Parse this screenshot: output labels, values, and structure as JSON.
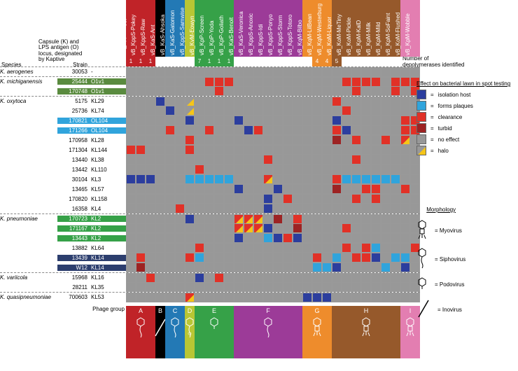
{
  "colors": {
    "no_effect": "#989898",
    "isolation": "#2c3e9e",
    "plaques": "#30a4dc",
    "clearance": "#e13127",
    "turbid": "#9d2323",
    "halo": "#f5c518",
    "grp_A": "#c02328",
    "grp_B": "#000000",
    "grp_C": "#2379b5",
    "grp_D": "#b9c634",
    "grp_E": "#36a148",
    "grp_F": "#9c3b98",
    "grp_G": "#ee8c2c",
    "grp_H": "#96592b",
    "grp_I": "#e37eb1",
    "hl_green": "#5a8b3f",
    "hl_blue": "#30a4dc",
    "hl_green2": "#36a148",
    "hl_navy": "#2c3e6e"
  },
  "meta_labels": {
    "species": "Species",
    "strain": "Strain",
    "locus": "Capsule (K) and LPS antigen (O) locus, designated by Kaptive",
    "depoly": "Number of depolymerases identified",
    "phage_group": "Phage group"
  },
  "columns": [
    {
      "label": "vB_KppS-Eggy",
      "grp": "A",
      "num": "1"
    },
    {
      "label": "vB_KppS-Pokey",
      "grp": "A",
      "num": "1"
    },
    {
      "label": "vB_KppS-Raw",
      "grp": "A",
      "num": "1"
    },
    {
      "label": "vB_KaS-Ant",
      "grp": "B",
      "num": ""
    },
    {
      "label": "vB_KaS-Ahsoka",
      "grp": "C",
      "num": ""
    },
    {
      "label": "vB_KaS-Gatomon",
      "grp": "C",
      "num": ""
    },
    {
      "label": "vB_KppS-Samwise",
      "grp": "D",
      "num": ""
    },
    {
      "label": "vB_KvM-Eowyn",
      "grp": "E",
      "num": "7"
    },
    {
      "label": "vB_KpP-Screen",
      "grp": "E",
      "num": "1"
    },
    {
      "label": "vB_KpP-Yoda",
      "grp": "E",
      "num": "1"
    },
    {
      "label": "vB_KpP-Goliath",
      "grp": "E",
      "num": "1"
    },
    {
      "label": "vB_KaS-Benoit",
      "grp": "F",
      "num": ""
    },
    {
      "label": "vB_KaS-Veronica",
      "grp": "F",
      "num": ""
    },
    {
      "label": "vB_KppS-Anoxic",
      "grp": "F",
      "num": ""
    },
    {
      "label": "vB_KppS-Idi",
      "grp": "F",
      "num": ""
    },
    {
      "label": "vB_KppS-Ponyo",
      "grp": "F",
      "num": ""
    },
    {
      "label": "vB_KppS-Storm",
      "grp": "F",
      "num": ""
    },
    {
      "label": "vB_KppS-Totoro",
      "grp": "F",
      "num": ""
    },
    {
      "label": "vB_KqM-Bilbo",
      "grp": "G",
      "num": ""
    },
    {
      "label": "vB_KqM-LilBean",
      "grp": "G",
      "num": "4"
    },
    {
      "label": "vB_KqM-Westerburg",
      "grp": "G",
      "num": "4"
    },
    {
      "label": "vB_KoM-Liquor",
      "grp": "H",
      "num": "5"
    },
    {
      "label": "vB_KoM-MeTiny",
      "grp": "H",
      "num": ""
    },
    {
      "label": "vB_KoM-Pickle",
      "grp": "H",
      "num": ""
    },
    {
      "label": "vB_KpM-KalD",
      "grp": "H",
      "num": ""
    },
    {
      "label": "vB_KpM-Milk",
      "grp": "H",
      "num": ""
    },
    {
      "label": "vB_KpM-Mild",
      "grp": "H",
      "num": ""
    },
    {
      "label": "vB_KpM-SoFaint",
      "grp": "H",
      "num": ""
    },
    {
      "label": "vB_KoM-Flushed",
      "grp": "I",
      "num": ""
    },
    {
      "label": "vB_KpM-Wobble",
      "grp": "I",
      "num": ""
    }
  ],
  "rows": [
    {
      "species": "K. aerogenes",
      "strain": "30053",
      "locus": "-",
      "hl": "",
      "sp_first": true,
      "cells": "nnnnnnnnnnnnnnnnnnnnnnnnnnnnnn"
    },
    {
      "species": "K. michiganensis",
      "strain": "25444",
      "locus": "O1v1",
      "hl": "hl_green",
      "sp_first": true,
      "cells": "nnnnnnnncccnnnnnnnnnnnccccnccc"
    },
    {
      "species": "",
      "strain": "170748",
      "locus": "O1v1",
      "hl": "hl_green",
      "cells": "nnnnnnnnncnnnnnnnnnnnnncnnncnc"
    },
    {
      "species": "K. oxytoca",
      "strain": "5175",
      "locus": "KL29",
      "hl": "",
      "sp_first": true,
      "cells": "nnninnhnnnnnnnnnnnnnncnnnnnnnn"
    },
    {
      "species": "",
      "strain": "25736",
      "locus": "KL74",
      "hl": "",
      "cells": "nnnninhnnnnnnnnnnnnnnncnnnnnnn"
    },
    {
      "species": "",
      "strain": "170821",
      "locus": "OL104",
      "hl": "hl_blue",
      "cells": "nnnnnninnnninnnnnnnnninnnnnncc"
    },
    {
      "species": "",
      "strain": "171266",
      "locus": "OL104",
      "hl": "hl_blue",
      "cells": "nnnncnnncnnnicnnnnnnncinnnnncc"
    },
    {
      "species": "",
      "strain": "170958",
      "locus": "KL28",
      "hl": "",
      "cells": "nnnnnncnnnnnnnnnnnnnntncnncnHn"
    },
    {
      "species": "",
      "strain": "171304",
      "locus": "KL144",
      "hl": "",
      "cells": "ccnnnncnnnnnnnnnnnnnnnnnnnnnnn"
    },
    {
      "species": "",
      "strain": "13440",
      "locus": "KL38",
      "hl": "",
      "cells": "nnnnnnnnnnnnnncnnnnnnnncnnnnnn"
    },
    {
      "species": "",
      "strain": "13442",
      "locus": "KL110",
      "hl": "",
      "cells": "nnnnnnncnnnnnnnnnnnnnnnnnnnnnn"
    },
    {
      "species": "",
      "strain": "30104",
      "locus": "KL3",
      "hl": "",
      "cells": "iiinnnpppppnnnHnnnnnncppppppnn"
    },
    {
      "species": "",
      "strain": "13465",
      "locus": "KL57",
      "hl": "",
      "cells": "nnnnnnnnnnninnninnnnntnnccnncn"
    },
    {
      "species": "",
      "strain": "170820",
      "locus": "KL158",
      "hl": "",
      "cells": "nnnnnnnnnnnnnnincnnnnnncncnnnn"
    },
    {
      "species": "",
      "strain": "16358",
      "locus": "KL4",
      "hl": "",
      "cells": "nnnnncnnnnnnnninnnnnnnnnnnnnnn"
    },
    {
      "species": "K. pneumoniae",
      "strain": "170723",
      "locus": "KL2",
      "hl": "hl_green2",
      "sp_first": true,
      "cells": "nnnnnninnnnHHHntncnnnnnnnnnnnn"
    },
    {
      "species": "",
      "strain": "171167",
      "locus": "KL2",
      "hl": "hl_green2",
      "cells": "nnnnnnnnnnnHHHinntnnnncnnnnnnn"
    },
    {
      "species": "",
      "strain": "13443",
      "locus": "KL2",
      "hl": "hl_green2",
      "cells": "nnnnnnnnnnninnpicinnnnnnnnnnnn"
    },
    {
      "species": "",
      "strain": "13882",
      "locus": "KL64",
      "hl": "",
      "cells": "nnnnnnncnnnnnnnnnnnnnncncpnnnc"
    },
    {
      "species": "",
      "strain": "13439",
      "locus": "KL14",
      "hl": "hl_navy",
      "cells": "ncnnnncpnnnnnnnnnnncnpnccinppn"
    },
    {
      "species": "",
      "strain": "W12",
      "locus": "KL14",
      "hl": "hl_navy",
      "cells": "ntnnnnnnnnnnnnnnnnnppinnnnpnin"
    },
    {
      "species": "K. variicola",
      "strain": "15968",
      "locus": "KL16",
      "hl": "",
      "sp_first": true,
      "cells": "nncnnnnincnnnnnnnnnnnnnnnnnnnn"
    },
    {
      "species": "",
      "strain": "28211",
      "locus": "KL35",
      "hl": "",
      "cells": "nnnnnnnnnnnnnnnnnnnnnnnnnnnnnn"
    },
    {
      "species": "K. quasipneumoniae",
      "strain": "700603",
      "locus": "KL53",
      "hl": "",
      "sp_first": true,
      "cells": "nnnnnnHnnnnnnnnnnniiinnnnnnnnn"
    }
  ],
  "phage_groups": [
    {
      "id": "A",
      "w": 42,
      "morph": "sipho"
    },
    {
      "id": "B",
      "w": 14,
      "morph": "inov"
    },
    {
      "id": "C",
      "w": 28,
      "morph": "sipho"
    },
    {
      "id": "D",
      "w": 14,
      "morph": "sipho-podo"
    },
    {
      "id": "E",
      "w": 56,
      "morph": "podo"
    },
    {
      "id": "F",
      "w": 98,
      "morph": "sipho"
    },
    {
      "id": "G",
      "w": 42,
      "morph": "myo"
    },
    {
      "id": "H",
      "w": 98,
      "morph": "myo"
    },
    {
      "id": "I",
      "w": 28,
      "morph": "myo"
    }
  ],
  "legend": {
    "effect_title": "Effect on bacterial lawn in spot testing",
    "items": [
      {
        "k": "isolation",
        "label": "isolation host"
      },
      {
        "k": "plaques",
        "label": "forms plaques"
      },
      {
        "k": "clearance",
        "label": "clearance"
      },
      {
        "k": "turbid",
        "label": "turbid"
      },
      {
        "k": "no_effect",
        "label": "no effect"
      },
      {
        "k": "halo",
        "label": "halo"
      }
    ],
    "morph_title": "Morphology",
    "morphs": [
      {
        "k": "myo",
        "label": "Myovirus"
      },
      {
        "k": "sipho",
        "label": "Siphovirus"
      },
      {
        "k": "podo",
        "label": "Podovirus"
      },
      {
        "k": "inov",
        "label": "Inovirus"
      }
    ]
  }
}
